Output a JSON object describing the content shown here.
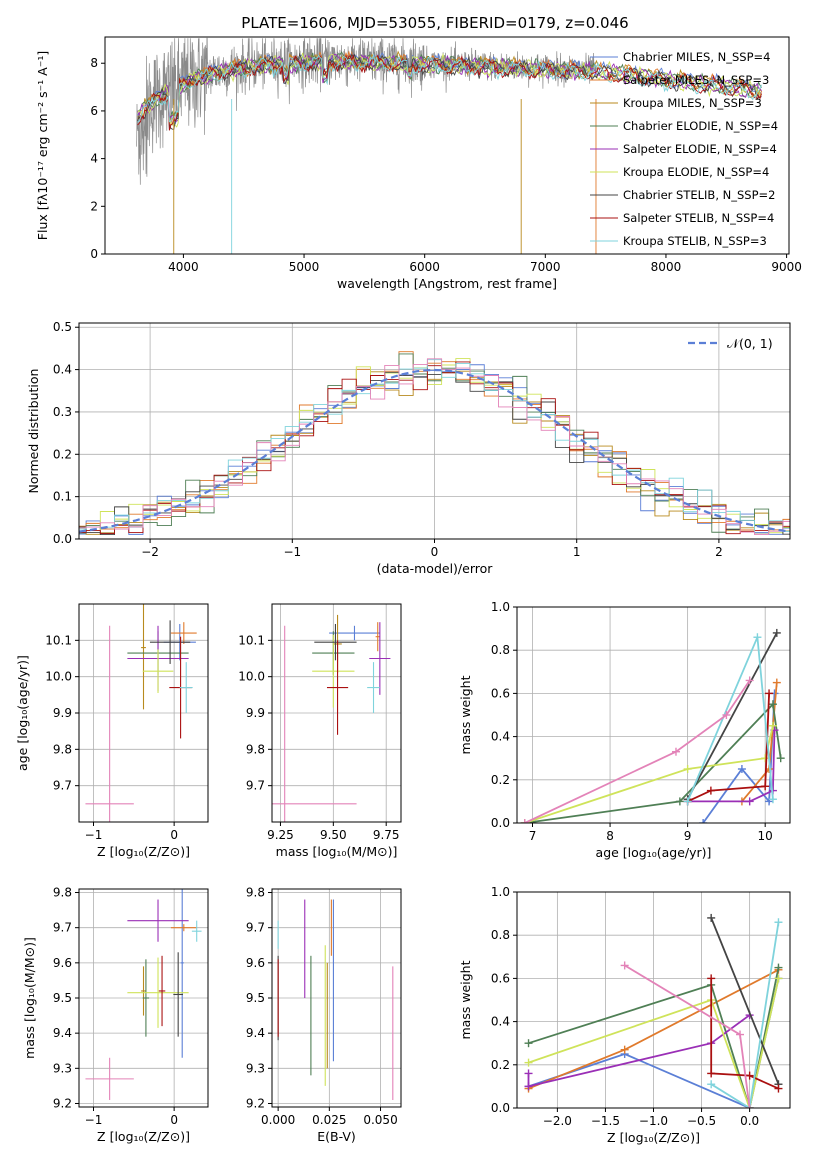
{
  "colors": [
    "#5b7fd6",
    "#e07a2c",
    "#b88a1e",
    "#4f7f55",
    "#9a2fb6",
    "#cfe35a",
    "#444444",
    "#aa1010",
    "#7fd3dc",
    "#e383b8"
  ],
  "gray": "#8a8a8a",
  "chart_data": [
    {
      "id": "spectrum",
      "type": "line",
      "title": "PLATE=1606, MJD=53055, FIBERID=0179, z=0.046",
      "xlabel": "wavelength [Angstrom, rest frame]",
      "ylabel": "Flux [fλ10⁻¹⁷ erg cm⁻² s⁻¹ A⁻¹]",
      "xlim": [
        3350,
        9020
      ],
      "ylim": [
        0,
        9.1
      ],
      "xticks": [
        "4000",
        "5000",
        "6000",
        "7000",
        "8000",
        "9000"
      ],
      "yticks": [
        "0",
        "2",
        "4",
        "6",
        "8"
      ],
      "legend_position": "top-right",
      "series": [
        {
          "name": "Chabrier MILES, N_SSP=4"
        },
        {
          "name": "Salpeter MILES, N_SSP=3"
        },
        {
          "name": "Kroupa MILES, N_SSP=3"
        },
        {
          "name": "Chabrier ELODIE, N_SSP=4"
        },
        {
          "name": "Salpeter ELODIE, N_SSP=4"
        },
        {
          "name": "Kroupa ELODIE, N_SSP=4"
        },
        {
          "name": "Chabrier STELIB, N_SSP=2"
        },
        {
          "name": "Salpeter STELIB, N_SSP=4"
        },
        {
          "name": "Kroupa STELIB, N_SSP=3"
        }
      ]
    },
    {
      "id": "residuals",
      "type": "line",
      "xlabel": "(data-model)/error",
      "ylabel": "Normed distribution",
      "xlim": [
        -2.5,
        2.5
      ],
      "ylim": [
        0,
        0.51
      ],
      "xticks": [
        "−2",
        "−1",
        "0",
        "1",
        "2"
      ],
      "yticks": [
        "0.0",
        "0.1",
        "0.2",
        "0.3",
        "0.4",
        "0.5"
      ],
      "legend_position": "top-right",
      "reference_curve": {
        "name": "𝒩(0, 1)",
        "mu": 0,
        "sigma": 1
      }
    },
    {
      "id": "age_vs_Z",
      "type": "scatter",
      "xlabel": "Z [log₁₀(Z/Z⊙)]",
      "ylabel": "age  [log₁₀(age/yr)]",
      "xlim": [
        -1.18,
        0.42
      ],
      "ylim": [
        9.6,
        10.2
      ],
      "xticks": [
        "−1",
        "0"
      ],
      "yticks": [
        "9.7",
        "9.8",
        "9.9",
        "10.0",
        "10.1"
      ],
      "points": [
        {
          "x": 0.07,
          "y": 10.095,
          "xerr": 0.2,
          "yerr": 0.05,
          "c": 0
        },
        {
          "x": 0.12,
          "y": 10.12,
          "xerr": 0.16,
          "yerr": 0.03,
          "c": 1
        },
        {
          "x": -0.38,
          "y": 10.08,
          "xerr": 0.03,
          "yerr": 0.17,
          "c": 2
        },
        {
          "x": -0.2,
          "y": 10.065,
          "xerr": 0.38,
          "yerr": 0.06,
          "c": 3
        },
        {
          "x": -0.2,
          "y": 10.05,
          "xerr": 0.38,
          "yerr": 0.09,
          "c": 4
        },
        {
          "x": -0.2,
          "y": 10.015,
          "xerr": 0.19,
          "yerr": 0.06,
          "c": 5
        },
        {
          "x": -0.05,
          "y": 10.095,
          "xerr": 0.25,
          "yerr": 0.06,
          "c": 6
        },
        {
          "x": 0.08,
          "y": 9.97,
          "xerr": 0.14,
          "yerr": 0.14,
          "c": 7
        },
        {
          "x": 0.15,
          "y": 9.97,
          "xerr": 0.08,
          "yerr": 0.07,
          "c": 8
        },
        {
          "x": -0.8,
          "y": 9.65,
          "xerr": 0.3,
          "yerr": 0.49,
          "c": 9
        }
      ]
    },
    {
      "id": "age_vs_mass",
      "type": "scatter",
      "xlabel": "mass [log₁₀(M/M⊙)]",
      "ylabel": "",
      "xlim": [
        9.21,
        9.82
      ],
      "ylim": [
        9.6,
        10.2
      ],
      "xticks": [
        "9.25",
        "9.50",
        "9.75"
      ],
      "yticks": [
        "9.7",
        "9.8",
        "9.9",
        "10.0",
        "10.1"
      ],
      "points": [
        {
          "x": 9.6,
          "y": 10.12,
          "xerr": 0.12,
          "yerr": 0.02,
          "c": 0
        },
        {
          "x": 9.71,
          "y": 10.11,
          "xerr": 0.01,
          "yerr": 0.04,
          "c": 1
        },
        {
          "x": 9.52,
          "y": 10.09,
          "xerr": 0.02,
          "yerr": 0.08,
          "c": 2
        },
        {
          "x": 9.5,
          "y": 10.065,
          "xerr": 0.1,
          "yerr": 0.06,
          "c": 3
        },
        {
          "x": 9.72,
          "y": 10.05,
          "xerr": 0.05,
          "yerr": 0.1,
          "c": 4
        },
        {
          "x": 9.5,
          "y": 10.015,
          "xerr": 0.1,
          "yerr": 0.1,
          "c": 5
        },
        {
          "x": 9.51,
          "y": 10.095,
          "xerr": 0.1,
          "yerr": 0.05,
          "c": 6
        },
        {
          "x": 9.52,
          "y": 9.97,
          "xerr": 0.05,
          "yerr": 0.13,
          "c": 7
        },
        {
          "x": 9.69,
          "y": 9.97,
          "xerr": 0.03,
          "yerr": 0.07,
          "c": 8
        },
        {
          "x": 9.27,
          "y": 9.65,
          "xerr": 0.34,
          "yerr": 0.49,
          "c": 9
        }
      ]
    },
    {
      "id": "weight_vs_age",
      "type": "line",
      "xlabel": "age  [log₁₀(age/yr)]",
      "ylabel": "mass weight",
      "xlim": [
        6.8,
        10.32
      ],
      "ylim": [
        0,
        1.0
      ],
      "xticks": [
        "7",
        "8",
        "9",
        "10"
      ],
      "yticks": [
        "0.0",
        "0.2",
        "0.4",
        "0.6",
        "0.8",
        "1.0"
      ],
      "series": [
        {
          "c": 0,
          "x": [
            9.2,
            9.7,
            10.05,
            10.12
          ],
          "y": [
            0.0,
            0.25,
            0.1,
            0.6
          ]
        },
        {
          "c": 1,
          "x": [
            9.7,
            10.05,
            10.15
          ],
          "y": [
            0.1,
            0.25,
            0.65
          ]
        },
        {
          "c": 3,
          "x": [
            6.9,
            8.9,
            10.1,
            10.2
          ],
          "y": [
            0.0,
            0.1,
            0.55,
            0.3
          ]
        },
        {
          "c": 4,
          "x": [
            9.0,
            9.8,
            10.1,
            10.12
          ],
          "y": [
            0.1,
            0.1,
            0.15,
            0.43
          ]
        },
        {
          "c": 5,
          "x": [
            6.9,
            9.0,
            10.0,
            10.1
          ],
          "y": [
            0.0,
            0.25,
            0.3,
            0.45
          ]
        },
        {
          "c": 6,
          "x": [
            9.0,
            10.15
          ],
          "y": [
            0.11,
            0.88
          ]
        },
        {
          "c": 7,
          "x": [
            9.0,
            9.3,
            10.0,
            10.05
          ],
          "y": [
            0.1,
            0.15,
            0.17,
            0.6
          ]
        },
        {
          "c": 8,
          "x": [
            9.0,
            9.9,
            10.1
          ],
          "y": [
            0.1,
            0.86,
            0.11
          ]
        },
        {
          "c": 9,
          "x": [
            6.9,
            8.85,
            9.5,
            9.8
          ],
          "y": [
            0.0,
            0.33,
            0.5,
            0.66
          ]
        }
      ]
    },
    {
      "id": "mass_vs_Z",
      "type": "scatter",
      "xlabel": "Z [log₁₀(Z/Z⊙)]",
      "ylabel": "mass [log₁₀(M/M⊙)]",
      "xlim": [
        -1.18,
        0.42
      ],
      "ylim": [
        9.19,
        9.81
      ],
      "xticks": [
        "−1",
        "0"
      ],
      "yticks": [
        "9.2",
        "9.3",
        "9.4",
        "9.5",
        "9.6",
        "9.7",
        "9.8"
      ],
      "points": [
        {
          "x": 0.1,
          "y": 9.6,
          "xerr": 0.02,
          "yerr": 0.27,
          "c": 0
        },
        {
          "x": 0.12,
          "y": 9.7,
          "xerr": 0.16,
          "yerr": 0.01,
          "c": 1
        },
        {
          "x": -0.38,
          "y": 9.52,
          "xerr": 0.03,
          "yerr": 0.07,
          "c": 2
        },
        {
          "x": -0.35,
          "y": 9.5,
          "xerr": 0.04,
          "yerr": 0.11,
          "c": 3
        },
        {
          "x": -0.2,
          "y": 9.72,
          "xerr": 0.38,
          "yerr": 0.06,
          "c": 4
        },
        {
          "x": -0.2,
          "y": 9.515,
          "xerr": 0.38,
          "yerr": 0.1,
          "c": 5
        },
        {
          "x": 0.05,
          "y": 9.51,
          "xerr": 0.06,
          "yerr": 0.12,
          "c": 6
        },
        {
          "x": -0.15,
          "y": 9.52,
          "xerr": 0.04,
          "yerr": 0.1,
          "c": 7
        },
        {
          "x": 0.28,
          "y": 9.69,
          "xerr": 0.06,
          "yerr": 0.03,
          "c": 8
        },
        {
          "x": -0.8,
          "y": 9.27,
          "xerr": 0.3,
          "yerr": 0.06,
          "c": 9
        }
      ]
    },
    {
      "id": "mass_vs_EBV",
      "type": "scatter",
      "xlabel": "E(B-V)",
      "ylabel": "",
      "xlim": [
        -0.003,
        0.06
      ],
      "ylim": [
        9.19,
        9.81
      ],
      "xticks": [
        "0.000",
        "0.025",
        "0.050"
      ],
      "yticks": [
        "9.2",
        "9.3",
        "9.4",
        "9.5",
        "9.6",
        "9.7",
        "9.8"
      ],
      "points": [
        {
          "x": 0.027,
          "y": 9.55,
          "yerr": 0.23,
          "c": 0
        },
        {
          "x": 0.026,
          "y": 9.7,
          "yerr": 0.08,
          "c": 1
        },
        {
          "x": 0.024,
          "y": 9.45,
          "yerr": 0.15,
          "c": 2
        },
        {
          "x": 0.016,
          "y": 9.45,
          "yerr": 0.17,
          "c": 3
        },
        {
          "x": 0.013,
          "y": 9.64,
          "yerr": 0.14,
          "c": 4
        },
        {
          "x": 0.023,
          "y": 9.45,
          "yerr": 0.2,
          "c": 5
        },
        {
          "x": 0.0,
          "y": 9.5,
          "yerr": 0.12,
          "c": 6
        },
        {
          "x": 0.0,
          "y": 9.5,
          "yerr": 0.11,
          "c": 7
        },
        {
          "x": 0.0,
          "y": 9.68,
          "yerr": 0.04,
          "c": 8
        },
        {
          "x": 0.056,
          "y": 9.4,
          "yerr": 0.19,
          "c": 9
        }
      ]
    },
    {
      "id": "weight_vs_Z",
      "type": "line",
      "xlabel": "Z [log₁₀(Z/Z⊙)]",
      "ylabel": "mass weight",
      "xlim": [
        -2.42,
        0.42
      ],
      "ylim": [
        0,
        1.0
      ],
      "xticks": [
        "−2.0",
        "−1.5",
        "−1.0",
        "−0.5",
        "0.0"
      ],
      "yticks": [
        "0.0",
        "0.2",
        "0.4",
        "0.6",
        "0.8",
        "1.0"
      ],
      "series": [
        {
          "c": 0,
          "x": [
            -2.3,
            -1.3,
            0.0,
            0.3
          ],
          "y": [
            0.1,
            0.25,
            0.0,
            0.6
          ]
        },
        {
          "c": 1,
          "x": [
            -2.3,
            -1.3,
            0.3
          ],
          "y": [
            0.09,
            0.27,
            0.64
          ]
        },
        {
          "c": 3,
          "x": [
            -2.3,
            -0.4,
            0.0,
            0.3
          ],
          "y": [
            0.3,
            0.57,
            0.0,
            0.65
          ]
        },
        {
          "c": 4,
          "x": [
            -2.3,
            -2.3,
            -0.4,
            0.0
          ],
          "y": [
            0.16,
            0.1,
            0.3,
            0.43
          ]
        },
        {
          "c": 5,
          "x": [
            -2.3,
            -0.4,
            0.0,
            0.3
          ],
          "y": [
            0.21,
            0.5,
            0.0,
            0.6
          ]
        },
        {
          "c": 6,
          "x": [
            -0.4,
            0.3
          ],
          "y": [
            0.88,
            0.11
          ]
        },
        {
          "c": 7,
          "x": [
            -0.4,
            -0.4,
            0.0,
            0.3
          ],
          "y": [
            0.6,
            0.16,
            0.15,
            0.09
          ]
        },
        {
          "c": 8,
          "x": [
            -0.4,
            0.0,
            0.3
          ],
          "y": [
            0.11,
            0.0,
            0.86
          ]
        },
        {
          "c": 9,
          "x": [
            -1.3,
            -0.1,
            0.0
          ],
          "y": [
            0.66,
            0.34,
            0.0
          ]
        }
      ]
    }
  ]
}
